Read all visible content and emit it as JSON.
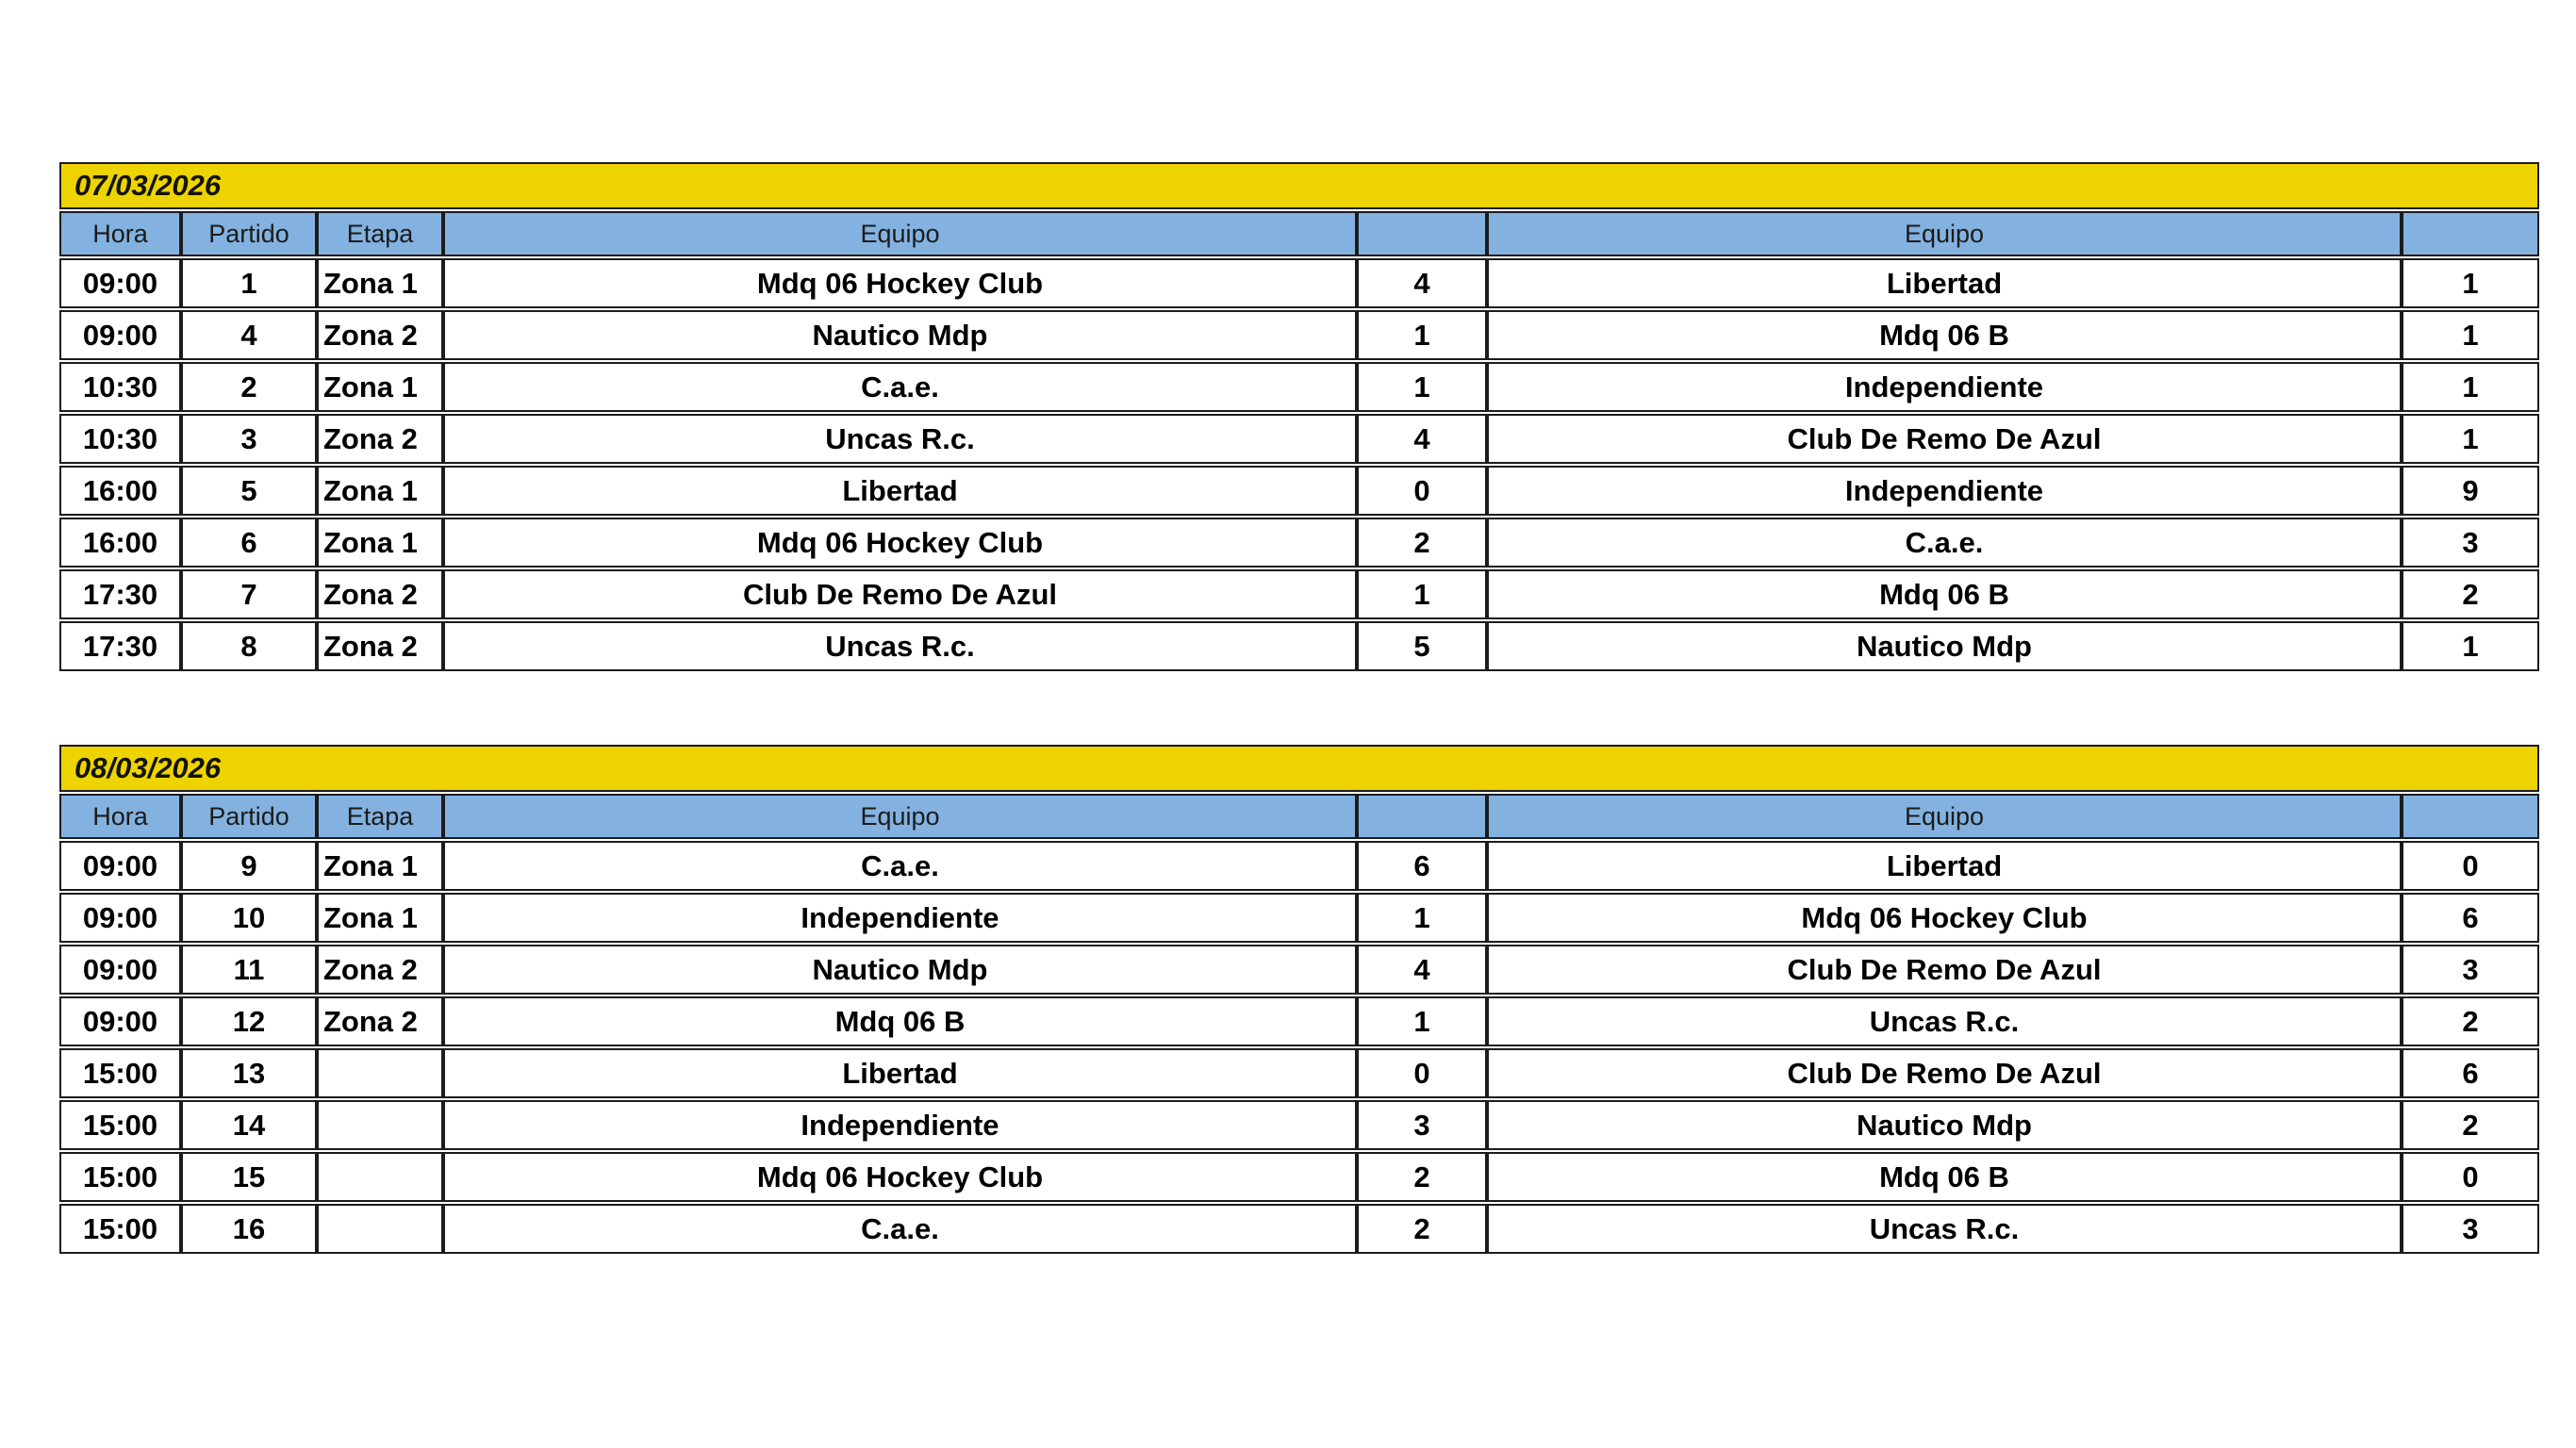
{
  "page": {
    "kind": "match-schedule-sheet",
    "background": "#ffffff"
  },
  "colors": {
    "date_band_bg": "#edd400",
    "header_bg": "#83b2e0",
    "border": "#1c1c1c",
    "row_bg": "#ffffff",
    "text": "#000000"
  },
  "tables": [
    {
      "date": "07/03/2026",
      "columns": [
        "Hora",
        "Partido",
        "Etapa",
        "Equipo",
        "",
        "Equipo",
        ""
      ],
      "rows": [
        {
          "hora": "09:00",
          "partido": "1",
          "etapa": "Zona 1",
          "equipo1": "Mdq 06 Hockey Club",
          "score1": "4",
          "equipo2": "Libertad",
          "score2": "1"
        },
        {
          "hora": "09:00",
          "partido": "4",
          "etapa": "Zona 2",
          "equipo1": "Nautico Mdp",
          "score1": "1",
          "equipo2": "Mdq 06 B",
          "score2": "1"
        },
        {
          "hora": "10:30",
          "partido": "2",
          "etapa": "Zona 1",
          "equipo1": "C.a.e.",
          "score1": "1",
          "equipo2": "Independiente",
          "score2": "1"
        },
        {
          "hora": "10:30",
          "partido": "3",
          "etapa": "Zona 2",
          "equipo1": "Uncas R.c.",
          "score1": "4",
          "equipo2": "Club De Remo De Azul",
          "score2": "1"
        },
        {
          "hora": "16:00",
          "partido": "5",
          "etapa": "Zona 1",
          "equipo1": "Libertad",
          "score1": "0",
          "equipo2": "Independiente",
          "score2": "9"
        },
        {
          "hora": "16:00",
          "partido": "6",
          "etapa": "Zona 1",
          "equipo1": "Mdq 06 Hockey Club",
          "score1": "2",
          "equipo2": "C.a.e.",
          "score2": "3"
        },
        {
          "hora": "17:30",
          "partido": "7",
          "etapa": "Zona 2",
          "equipo1": "Club De Remo De Azul",
          "score1": "1",
          "equipo2": "Mdq 06 B",
          "score2": "2"
        },
        {
          "hora": "17:30",
          "partido": "8",
          "etapa": "Zona 2",
          "equipo1": "Uncas R.c.",
          "score1": "5",
          "equipo2": "Nautico Mdp",
          "score2": "1"
        }
      ]
    },
    {
      "date": "08/03/2026",
      "columns": [
        "Hora",
        "Partido",
        "Etapa",
        "Equipo",
        "",
        "Equipo",
        ""
      ],
      "rows": [
        {
          "hora": "09:00",
          "partido": "9",
          "etapa": "Zona 1",
          "equipo1": "C.a.e.",
          "score1": "6",
          "equipo2": "Libertad",
          "score2": "0"
        },
        {
          "hora": "09:00",
          "partido": "10",
          "etapa": "Zona 1",
          "equipo1": "Independiente",
          "score1": "1",
          "equipo2": "Mdq 06 Hockey Club",
          "score2": "6"
        },
        {
          "hora": "09:00",
          "partido": "11",
          "etapa": "Zona 2",
          "equipo1": "Nautico Mdp",
          "score1": "4",
          "equipo2": "Club De Remo De Azul",
          "score2": "3"
        },
        {
          "hora": "09:00",
          "partido": "12",
          "etapa": "Zona 2",
          "equipo1": "Mdq 06 B",
          "score1": "1",
          "equipo2": "Uncas R.c.",
          "score2": "2"
        },
        {
          "hora": "15:00",
          "partido": "13",
          "etapa": "",
          "equipo1": "Libertad",
          "score1": "0",
          "equipo2": "Club De Remo De Azul",
          "score2": "6"
        },
        {
          "hora": "15:00",
          "partido": "14",
          "etapa": "",
          "equipo1": "Independiente",
          "score1": "3",
          "equipo2": "Nautico Mdp",
          "score2": "2"
        },
        {
          "hora": "15:00",
          "partido": "15",
          "etapa": "",
          "equipo1": "Mdq 06 Hockey Club",
          "score1": "2",
          "equipo2": "Mdq 06 B",
          "score2": "0"
        },
        {
          "hora": "15:00",
          "partido": "16",
          "etapa": "",
          "equipo1": "C.a.e.",
          "score1": "2",
          "equipo2": "Uncas R.c.",
          "score2": "3"
        }
      ]
    }
  ]
}
